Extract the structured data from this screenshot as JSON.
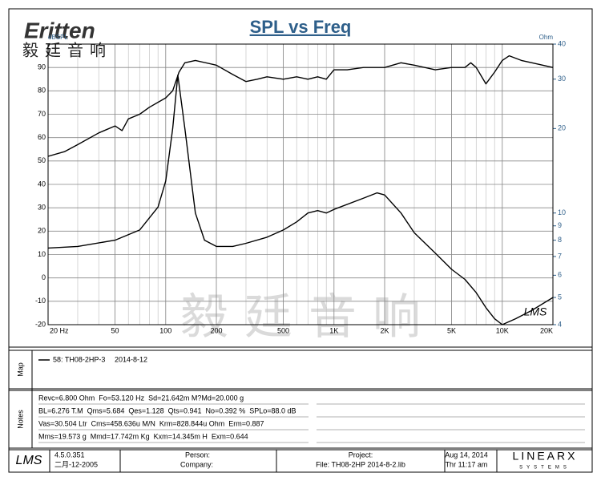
{
  "header": {
    "logo": "Eritten",
    "logo_cn": "毅廷音响",
    "watermark": "毅廷音响"
  },
  "chart_data": {
    "type": "line",
    "title": "SPL vs Freq",
    "y_label": "dBSPL",
    "y2_label": "Ohm",
    "corner_mark": "LMS",
    "xlog": true,
    "y2log": true,
    "grid": true,
    "minor_grid": true,
    "xlim": [
      20,
      20000
    ],
    "ylim": [
      -20,
      100
    ],
    "y2lim": [
      4,
      40
    ],
    "xticks": [
      {
        "value": 20,
        "label": "20 Hz"
      },
      50,
      100,
      200,
      500,
      {
        "value": 1000,
        "label": "1K"
      },
      {
        "value": 2000,
        "label": "2K"
      },
      {
        "value": 5000,
        "label": "5K"
      },
      {
        "value": 10000,
        "label": "10K"
      },
      {
        "value": 20000,
        "label": "20K"
      }
    ],
    "yticks": [
      -20,
      -10,
      0,
      10,
      20,
      30,
      40,
      50,
      60,
      70,
      80,
      90
    ],
    "y2ticks": [
      4,
      5,
      6,
      7,
      8,
      9,
      10,
      20,
      30,
      40
    ],
    "series": [
      {
        "color": "#000000",
        "x": [
          20,
          25,
          30,
          40,
          50,
          55,
          60,
          70,
          80,
          100,
          110,
          120,
          130,
          150,
          200,
          250,
          300,
          350,
          400,
          500,
          600,
          700,
          800,
          900,
          1000,
          1200,
          1500,
          2000,
          2500,
          3000,
          4000,
          5000,
          6000,
          6500,
          7000,
          8000,
          9000,
          10000,
          11000,
          13000,
          15000,
          20000
        ],
        "values": [
          52,
          54,
          57,
          62,
          65,
          63,
          68,
          70,
          73,
          77,
          80,
          88,
          92,
          93,
          91,
          87,
          84,
          85,
          86,
          85,
          86,
          85,
          86,
          85,
          89,
          89,
          90,
          90,
          92,
          91,
          89,
          90,
          90,
          92,
          90,
          83,
          88,
          93,
          95,
          93,
          92,
          90
        ]
      },
      {
        "color": "#000000",
        "axis": "y2",
        "x": [
          20,
          30,
          50,
          70,
          90,
          100,
          110,
          118,
          130,
          150,
          170,
          200,
          250,
          300,
          400,
          500,
          600,
          700,
          800,
          900,
          1000,
          1500,
          1800,
          2000,
          2500,
          3000,
          4000,
          5000,
          6000,
          7000,
          8000,
          9000,
          10000,
          12000,
          15000,
          20000
        ],
        "values": [
          7.5,
          7.6,
          8.0,
          8.7,
          10.5,
          13,
          20,
          31,
          20,
          10,
          8.0,
          7.6,
          7.6,
          7.8,
          8.2,
          8.7,
          9.3,
          10.0,
          10.2,
          10.0,
          10.3,
          11.3,
          11.8,
          11.6,
          10,
          8.5,
          7.2,
          6.3,
          5.8,
          5.2,
          4.6,
          4.2,
          4.0,
          4.2,
          4.5,
          5.0
        ]
      }
    ]
  },
  "map": {
    "label": "Map",
    "entry": "58: TH08-2HP-3",
    "date": "2014-8-12"
  },
  "notes": {
    "label": "Notes",
    "lines": [
      "Revc=6.800 Ohm  Fo=53.120 Hz  Sd=21.642m M?Md=20.000 g",
      "BL=6.276 T.M  Qms=5.684  Qes=1.128  Qts=0.941  No=0.392 %  SPLo=88.0 dB",
      "Vas=30.504 Ltr  Cms=458.636u M/N  Krm=828.844u Ohm  Erm=0.887",
      "Mms=19.573 g  Mmd=17.742m Kg  Kxm=14.345m H  Exm=0.644"
    ]
  },
  "footer": {
    "lms": "LMS",
    "version": "4.5.0.351",
    "build_date": "二月-12-2005",
    "person": "Person:",
    "company": "Company:",
    "project": "Project:",
    "file": "File: TH08-2HP   2014-8-2.lib",
    "date": "Aug 14, 2014",
    "time": "Thr 11:17 am",
    "brand": "LINEARX",
    "brand_sub": "SYSTEMS"
  }
}
